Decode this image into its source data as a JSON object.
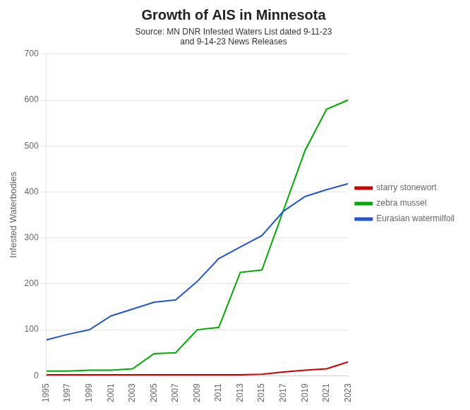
{
  "chart_data": {
    "type": "line",
    "title": "Growth of AIS in Minnesota",
    "subtitle": "Source: MN DNR Infested Waters List dated 9-11-23\nand 9-14-23 News Releases",
    "y_label": "Infested Waterbodies",
    "x": [
      1995,
      1997,
      1999,
      2001,
      2003,
      2005,
      2007,
      2009,
      2011,
      2013,
      2015,
      2017,
      2019,
      2021,
      2023
    ],
    "series": [
      {
        "name": "Eurasian watermilfoil",
        "color": "#2255cc",
        "values": [
          78,
          90,
          100,
          130,
          145,
          160,
          165,
          205,
          255,
          280,
          305,
          358,
          390,
          405,
          418
        ]
      },
      {
        "name": "zebra mussel",
        "color": "#00aa00",
        "values": [
          10,
          10,
          12,
          12,
          15,
          48,
          50,
          100,
          105,
          225,
          230,
          360,
          490,
          580,
          600
        ]
      },
      {
        "name": "starry stonewort",
        "color": "#cc0000",
        "values": [
          2,
          2,
          2,
          2,
          2,
          2,
          2,
          2,
          2,
          2,
          3,
          8,
          12,
          15,
          30
        ]
      }
    ],
    "xlim": [
      1995,
      2023
    ],
    "xticks": [
      1995,
      1997,
      1999,
      2001,
      2003,
      2005,
      2007,
      2009,
      2011,
      2013,
      2015,
      2017,
      2019,
      2021,
      2023
    ],
    "ylim": [
      0,
      700
    ],
    "yticks": [
      0,
      100,
      200,
      300,
      400,
      500,
      600,
      700
    ],
    "grid": true,
    "legend": "right"
  }
}
